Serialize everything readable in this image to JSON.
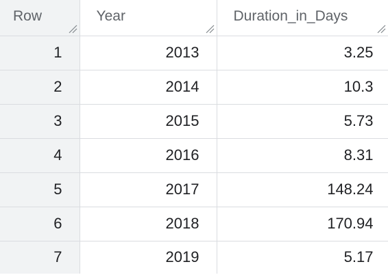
{
  "colors": {
    "header_text": "#5f6368",
    "cell_text": "#202124",
    "row_header_bg": "#f1f3f4",
    "grid_line": "#dadce0",
    "accent": "#1a73e8"
  },
  "table": {
    "columns": {
      "row": "Row",
      "year": "Year",
      "duration": "Duration_in_Days"
    },
    "rows": [
      {
        "row": "1",
        "year": "2013",
        "duration": "3.25"
      },
      {
        "row": "2",
        "year": "2014",
        "duration": "10.3"
      },
      {
        "row": "3",
        "year": "2015",
        "duration": "5.73"
      },
      {
        "row": "4",
        "year": "2016",
        "duration": "8.31"
      },
      {
        "row": "5",
        "year": "2017",
        "duration": "148.24"
      },
      {
        "row": "6",
        "year": "2018",
        "duration": "170.94"
      },
      {
        "row": "7",
        "year": "2019",
        "duration": "5.17"
      }
    ]
  }
}
